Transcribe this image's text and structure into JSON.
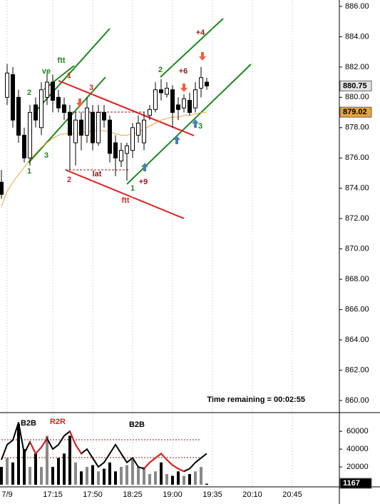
{
  "chart_data": {
    "type": "candlestick",
    "categories": [
      null,
      "7/9",
      null,
      null,
      null,
      null,
      null,
      null,
      null,
      "17:15",
      null,
      null,
      null,
      null,
      null,
      null,
      "17:50",
      null,
      null,
      null,
      null,
      null,
      null,
      "18:25",
      null,
      null,
      null,
      null,
      null,
      null,
      "19:00",
      null,
      null,
      null,
      null,
      null,
      null,
      "19:35",
      null,
      null,
      null,
      null,
      null,
      null,
      "20:10",
      null,
      null,
      null,
      null,
      null,
      null,
      "20:45"
    ],
    "ohlc": {
      "open": [
        874.4,
        880,
        881.5,
        880,
        877.5,
        876,
        879.5,
        878,
        880,
        881,
        880,
        879.5,
        879,
        877,
        878.5,
        877.5,
        879,
        877,
        879,
        878.5,
        877,
        875.8,
        876.3,
        876.5,
        877.5,
        877,
        878.8,
        879.2,
        880.5,
        880.2,
        880.5,
        879.5,
        879.3,
        879.8,
        879.3,
        880.6,
        881,
        null,
        null,
        null,
        null,
        null,
        null,
        null,
        null,
        null,
        null,
        null,
        null,
        null,
        null,
        null
      ],
      "high": [
        875.2,
        882.2,
        882,
        880.5,
        878,
        879.5,
        880,
        881,
        881.6,
        881.5,
        880.5,
        880,
        879.5,
        879,
        879,
        880,
        879.5,
        879.5,
        879.5,
        878.8,
        877.5,
        877,
        877,
        878.3,
        878.8,
        879,
        879.5,
        881,
        881.2,
        881,
        880.8,
        880,
        880.2,
        880.3,
        881,
        882,
        881.3,
        null,
        null,
        null,
        null,
        null,
        null,
        null,
        null,
        null,
        null,
        null,
        null,
        null,
        null,
        null
      ],
      "low": [
        873.3,
        879.5,
        878,
        877,
        875.7,
        875.5,
        878,
        877.5,
        879.5,
        879,
        879,
        878.5,
        875.2,
        875.5,
        876.5,
        877,
        876.5,
        876.8,
        878,
        875.7,
        874.8,
        875.4,
        874.5,
        876,
        877,
        876.5,
        878.5,
        879,
        879.8,
        880,
        878,
        878.5,
        879,
        878.8,
        879,
        880,
        880.5,
        null,
        null,
        null,
        null,
        null,
        null,
        null,
        null,
        null,
        null,
        null,
        null,
        null,
        null,
        null
      ],
      "close": [
        873.6,
        881.6,
        878.5,
        877.5,
        876,
        879,
        878.5,
        880.5,
        881,
        879.8,
        879.3,
        879,
        877.5,
        878.5,
        877.5,
        879.3,
        877,
        879,
        878.5,
        876.3,
        876,
        876.5,
        876.8,
        878,
        878.3,
        878.5,
        879.2,
        880.5,
        880.3,
        880.6,
        879,
        879.2,
        879.9,
        879,
        880.5,
        881.3,
        880.75,
        null,
        null,
        null,
        null,
        null,
        null,
        null,
        null,
        null,
        null,
        null,
        null,
        null,
        null,
        null
      ]
    },
    "ema": {
      "color": "#e8a33a",
      "values": [
        872.8,
        873.8,
        874.4,
        874.9,
        875.4,
        875.9,
        876.3,
        876.7,
        877,
        877.3,
        877.5,
        877.6,
        877.6,
        877.6,
        877.7,
        877.7,
        877.8,
        877.8,
        877.8,
        877.7,
        877.6,
        877.5,
        877.5,
        877.6,
        877.7,
        877.9,
        878.1,
        878.3,
        878.5,
        878.6,
        878.7,
        878.7,
        878.8,
        878.8,
        878.9,
        879,
        879.02,
        null,
        null,
        null,
        null,
        null,
        null,
        null,
        null,
        null,
        null,
        null,
        null,
        null,
        null,
        null
      ]
    },
    "ylim": [
      859.2,
      886.42
    ],
    "yticks": [
      {
        "value": 886,
        "label": "886.00"
      },
      {
        "value": 884,
        "label": "884.00"
      },
      {
        "value": 882,
        "label": "882.00"
      },
      {
        "value": 880,
        "label": "880.00"
      },
      {
        "value": 878,
        "label": "878.00"
      },
      {
        "value": 876,
        "label": "876.00"
      },
      {
        "value": 874,
        "label": "874.00"
      },
      {
        "value": 872,
        "label": "872.00"
      },
      {
        "value": 870,
        "label": "870.00"
      },
      {
        "value": 868,
        "label": "868.00"
      },
      {
        "value": 866,
        "label": "866.00"
      },
      {
        "value": 864,
        "label": "864.00"
      },
      {
        "value": 862,
        "label": "862.00"
      },
      {
        "value": 860,
        "label": "860.00"
      }
    ],
    "grid": true,
    "volume": {
      "values": [
        20000,
        30000,
        25000,
        68000,
        40000,
        20000,
        35000,
        20000,
        55000,
        20000,
        30000,
        35000,
        55000,
        25000,
        15000,
        20000,
        22000,
        15000,
        18000,
        25000,
        15000,
        20000,
        22000,
        28000,
        20000,
        20000,
        12000,
        15000,
        25000,
        12000,
        10000,
        15000,
        10000,
        12000,
        15000,
        20000,
        1167,
        null,
        null,
        null,
        null,
        null,
        null,
        null,
        null,
        null,
        null,
        null,
        null,
        null,
        null,
        null
      ],
      "ylim": [
        0,
        81000
      ],
      "yticks": [
        60000,
        40000,
        20000
      ],
      "lines": [
        {
          "color": "#000000",
          "values": [
            28000,
            45000,
            50000,
            70000,
            35000,
            48000,
            35000,
            42000,
            52000,
            40000,
            45000,
            55000,
            60000,
            45000,
            35000,
            40000,
            30000,
            20000,
            25000,
            35000,
            45000,
            35000,
            25000,
            30000,
            20000,
            18000,
            25000,
            30000,
            35000,
            28000,
            22000,
            18000,
            15000,
            18000,
            25000,
            30000,
            35000,
            null,
            null,
            null,
            null,
            null,
            null,
            null,
            null,
            null,
            null,
            null,
            null,
            null,
            null,
            null
          ]
        },
        {
          "color": "#e02020",
          "values": [
            null,
            null,
            null,
            null,
            null,
            48000,
            35000,
            42000,
            52000,
            null,
            null,
            null,
            60000,
            45000,
            35000,
            null,
            null,
            null,
            null,
            null,
            null,
            null,
            null,
            null,
            null,
            18000,
            25000,
            30000,
            35000,
            28000,
            22000,
            18000,
            15000,
            null,
            null,
            null,
            null,
            null,
            null,
            null,
            null,
            null,
            null,
            null,
            null,
            null,
            null,
            null,
            null,
            null,
            null,
            null
          ]
        }
      ]
    },
    "annotations": [
      {
        "text": "ftt",
        "color": "#1a8a1a"
      },
      {
        "text": "ve",
        "color": "#1a8a1a"
      },
      {
        "text": "2",
        "color": "#1a8a1a"
      },
      {
        "text": "3",
        "color": "#1a8a1a"
      },
      {
        "text": "1",
        "color": "#1a8a1a"
      },
      {
        "text": "1",
        "color": "#e02020"
      },
      {
        "text": "3",
        "color": "#e02020"
      },
      {
        "text": "2",
        "color": "#e02020"
      },
      {
        "text": "lat",
        "color": "#8b1a1a"
      },
      {
        "text": "ftt",
        "color": "#e02020"
      },
      {
        "text": "+9",
        "color": "#8b1a1a"
      },
      {
        "text": "1",
        "color": "#1a8a1a"
      },
      {
        "text": "2",
        "color": "#1a8a1a"
      },
      {
        "text": "+6",
        "color": "#8b1a1a"
      },
      {
        "text": "+4",
        "color": "#8b1a1a"
      },
      {
        "text": "3",
        "color": "#1a8a1a"
      },
      {
        "text": "B2B",
        "color": "#000000"
      },
      {
        "text": "R2R",
        "color": "#e02020"
      },
      {
        "text": "B2B",
        "color": "#000000"
      }
    ],
    "timer": "Time remaining = 00:02:55"
  }
}
